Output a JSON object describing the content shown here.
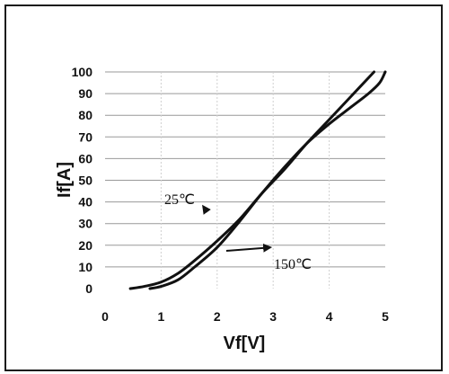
{
  "chart_data": {
    "type": "line",
    "xlabel": "Vf[V]",
    "ylabel": "If[A]",
    "xlim": [
      0,
      5
    ],
    "ylim": [
      0,
      100
    ],
    "x_ticks": [
      "0",
      "1",
      "2",
      "3",
      "4",
      "5"
    ],
    "y_ticks": [
      "0",
      "10",
      "20",
      "30",
      "40",
      "50",
      "60",
      "70",
      "80",
      "90",
      "100"
    ],
    "grid": true,
    "series": [
      {
        "name": "25℃",
        "x": [
          0.45,
          0.7,
          1.0,
          1.3,
          1.6,
          2.0,
          2.4,
          2.8,
          3.2,
          3.6,
          4.0,
          4.4,
          4.8
        ],
        "y": [
          0,
          1,
          3,
          7,
          13,
          22,
          32,
          44,
          55,
          67,
          78,
          89,
          100
        ]
      },
      {
        "name": "150℃",
        "x": [
          0.8,
          1.0,
          1.3,
          1.6,
          2.0,
          2.4,
          2.8,
          3.2,
          3.6,
          4.0,
          4.4,
          4.7,
          4.9,
          5.0
        ],
        "y": [
          0,
          1,
          4,
          10,
          19,
          31,
          44,
          56,
          67,
          76,
          84,
          90,
          95,
          100
        ]
      }
    ],
    "annotations": [
      {
        "text": "25℃",
        "series": 0,
        "arrow_to_x": 1.75,
        "arrow_to_y": 38
      },
      {
        "text": "150℃",
        "series": 1,
        "arrow_to_x": 2.95,
        "arrow_to_y": 19
      }
    ]
  }
}
